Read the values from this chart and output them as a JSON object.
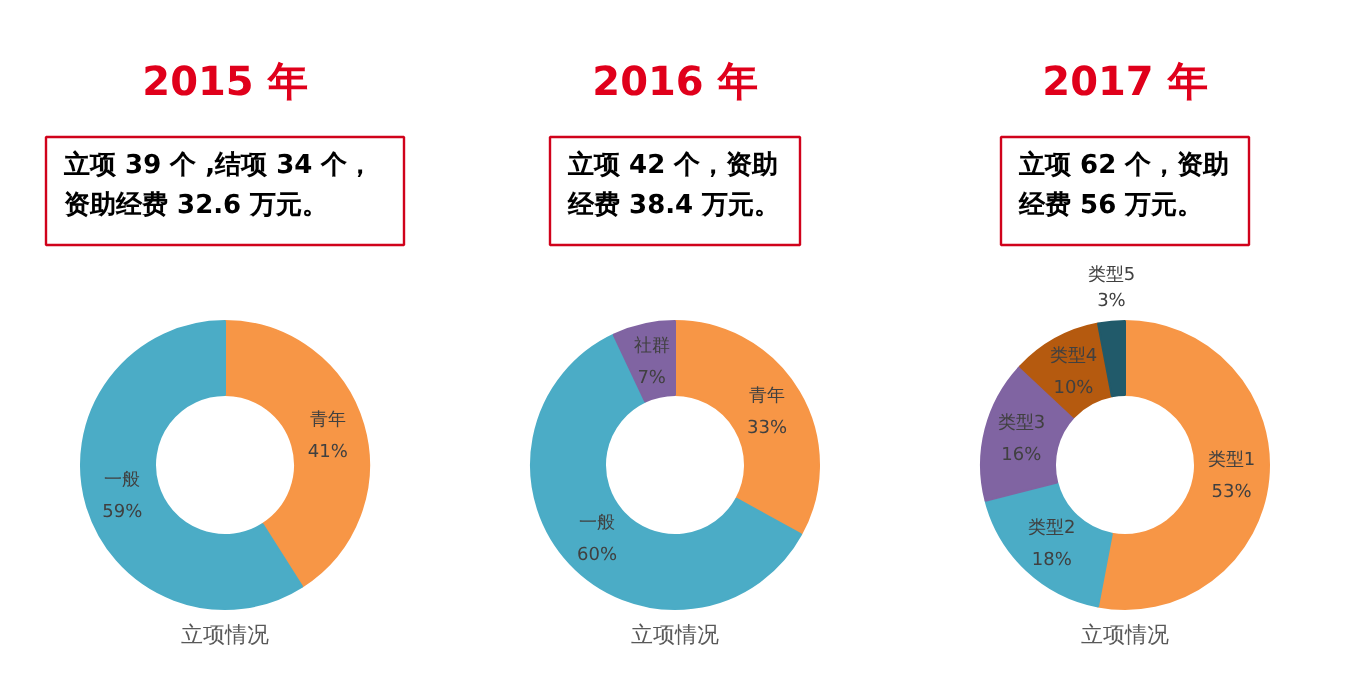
{
  "chart_data": [
    {
      "type": "donut",
      "title": "2015 年",
      "subtitle": "立项 39 个 ,结项 34 个，资助经费 32.6 万元。",
      "annotations": [
        "立项情况"
      ],
      "categories": [
        "青年",
        "一般"
      ],
      "values": [
        41,
        59
      ],
      "value_labels": [
        "41%",
        "59%"
      ],
      "colors": [
        "#f79646",
        "#4bacc6"
      ]
    },
    {
      "type": "donut",
      "title": "2016 年",
      "subtitle": "立项 42 个，资助经费 38.4 万元。",
      "annotations": [
        "立项情况"
      ],
      "categories": [
        "青年",
        "一般",
        "社群"
      ],
      "values": [
        33,
        60,
        7
      ],
      "value_labels": [
        "33%",
        "60%",
        "7%"
      ],
      "colors": [
        "#f79646",
        "#4bacc6",
        "#8064a2"
      ]
    },
    {
      "type": "donut",
      "title": "2017 年",
      "subtitle": "立项 62 个，资助经费 56 万元。",
      "annotations": [
        "立项情况"
      ],
      "categories": [
        "类型1",
        "类型2",
        "类型3",
        "类型4",
        "类型5"
      ],
      "values": [
        53,
        18,
        16,
        10,
        3
      ],
      "value_labels": [
        "53%",
        "18%",
        "16%",
        "10%",
        "3%"
      ],
      "colors": [
        "#f79646",
        "#4bacc6",
        "#8064a2",
        "#b55a0f",
        "#215a6a"
      ]
    }
  ]
}
